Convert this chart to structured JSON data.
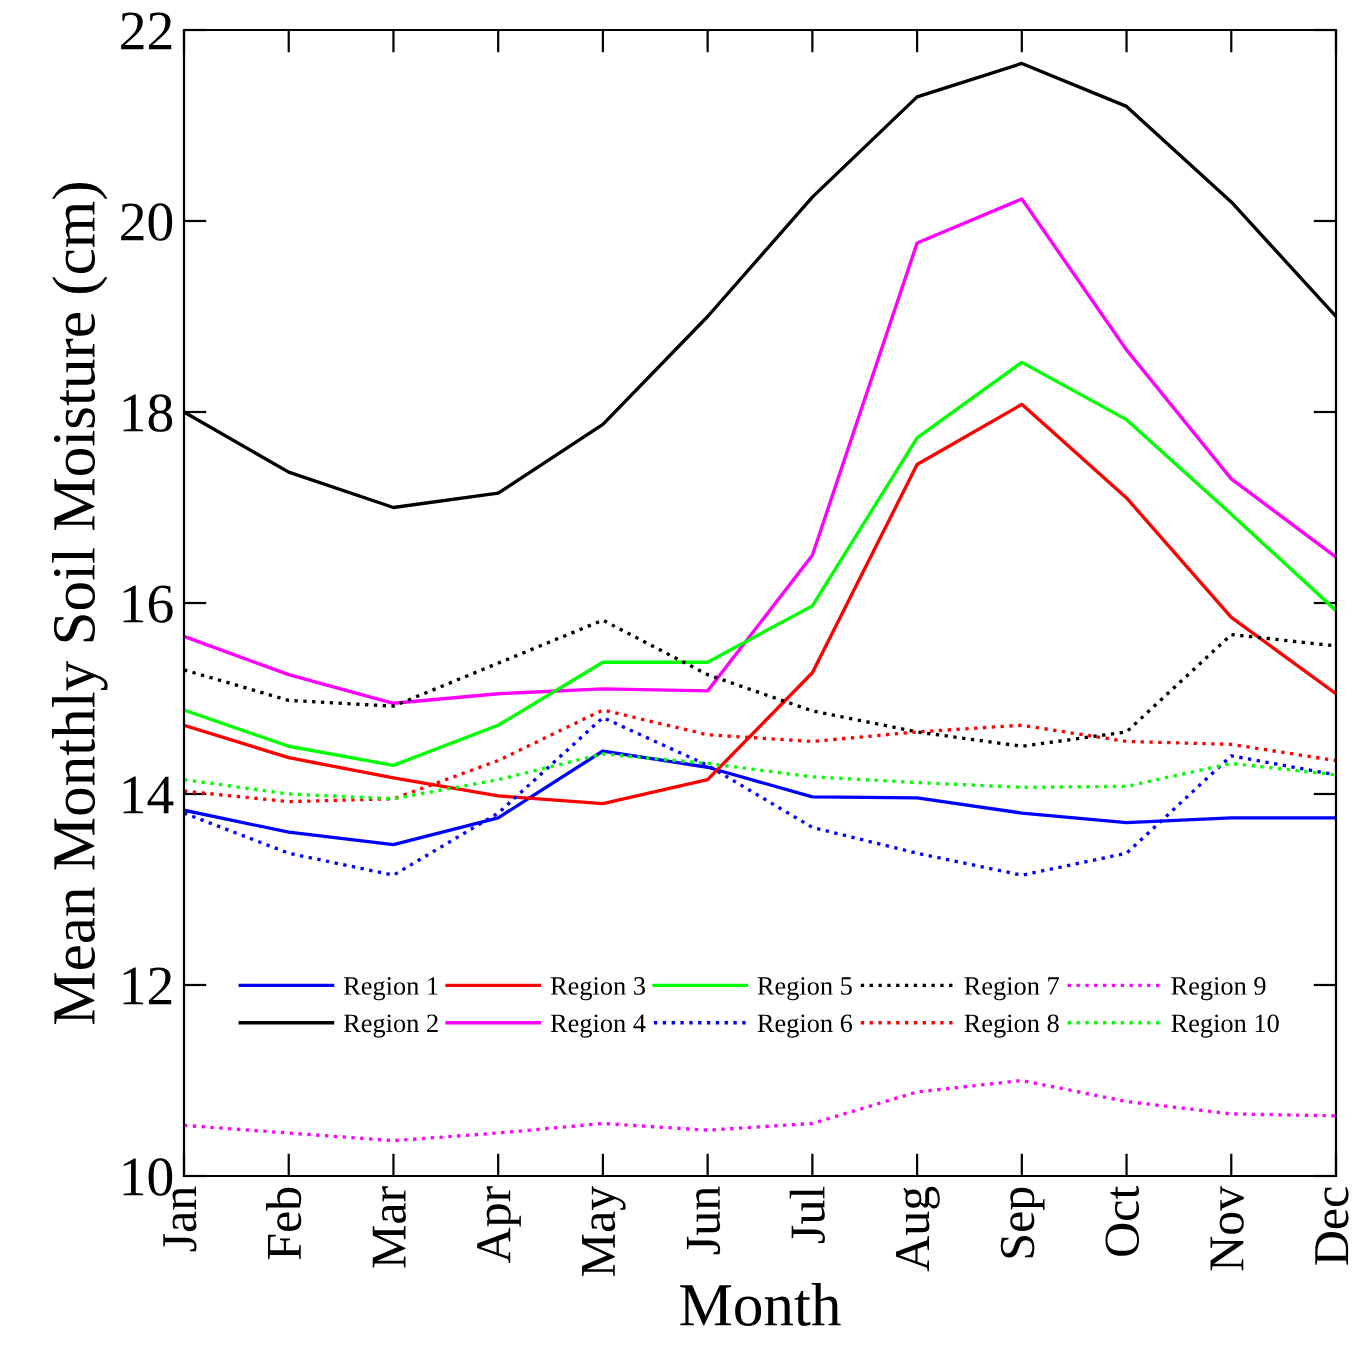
{
  "chart_data": {
    "type": "line",
    "xlabel": "Month",
    "ylabel": "Mean Monthly Soil Moisture (cm)",
    "categories": [
      "Jan",
      "Feb",
      "Mar",
      "Apr",
      "May",
      "Jun",
      "Jul",
      "Aug",
      "Sep",
      "Oct",
      "Nov",
      "Dec"
    ],
    "ylim": [
      10,
      22
    ],
    "yticks": [
      10,
      12,
      14,
      16,
      18,
      20,
      22
    ],
    "grid": false,
    "legend": "bottom",
    "marker": "none",
    "series": [
      {
        "name": "Region 1",
        "color": "#0000ff",
        "line_style": "solid",
        "values": [
          13.83,
          13.6,
          13.47,
          13.75,
          14.45,
          14.28,
          13.97,
          13.96,
          13.8,
          13.7,
          13.75,
          13.75
        ]
      },
      {
        "name": "Region 2",
        "color": "#000000",
        "line_style": "solid",
        "values": [
          18.0,
          17.37,
          17.0,
          17.15,
          17.87,
          19.0,
          20.25,
          21.3,
          21.65,
          21.2,
          20.2,
          19.0
        ]
      },
      {
        "name": "Region 3",
        "color": "#ff0000",
        "line_style": "solid",
        "values": [
          14.72,
          14.38,
          14.17,
          13.98,
          13.9,
          14.15,
          15.27,
          17.45,
          18.08,
          17.1,
          15.85,
          15.05
        ]
      },
      {
        "name": "Region 4",
        "color": "#ff00ff",
        "line_style": "solid",
        "values": [
          15.65,
          15.25,
          14.95,
          15.05,
          15.1,
          15.08,
          16.5,
          19.77,
          20.23,
          18.65,
          17.3,
          16.48
        ]
      },
      {
        "name": "Region 5",
        "color": "#00ff00",
        "line_style": "solid",
        "values": [
          14.88,
          14.5,
          14.3,
          14.72,
          15.38,
          15.38,
          15.97,
          17.73,
          18.52,
          17.92,
          16.93,
          15.92
        ]
      },
      {
        "name": "Region 6",
        "color": "#0000ff",
        "line_style": "dotted",
        "values": [
          13.8,
          13.38,
          13.15,
          13.8,
          14.8,
          14.3,
          13.65,
          13.38,
          13.15,
          13.38,
          14.4,
          14.2
        ]
      },
      {
        "name": "Region 7",
        "color": "#000000",
        "line_style": "dotted",
        "values": [
          15.3,
          14.98,
          14.92,
          15.37,
          15.82,
          15.25,
          14.87,
          14.65,
          14.5,
          14.65,
          15.67,
          15.55
        ]
      },
      {
        "name": "Region 8",
        "color": "#ff0000",
        "line_style": "dotted",
        "values": [
          14.03,
          13.92,
          13.95,
          14.35,
          14.88,
          14.62,
          14.55,
          14.65,
          14.72,
          14.55,
          14.52,
          14.35
        ]
      },
      {
        "name": "Region 9",
        "color": "#ff00ff",
        "line_style": "dotted",
        "values": [
          10.53,
          10.45,
          10.37,
          10.45,
          10.55,
          10.48,
          10.55,
          10.88,
          11.0,
          10.78,
          10.65,
          10.63
        ]
      },
      {
        "name": "Region 10",
        "color": "#00ff00",
        "line_style": "dotted",
        "values": [
          14.15,
          14.0,
          13.95,
          14.15,
          14.42,
          14.32,
          14.18,
          14.12,
          14.07,
          14.08,
          14.32,
          14.2
        ]
      }
    ]
  }
}
